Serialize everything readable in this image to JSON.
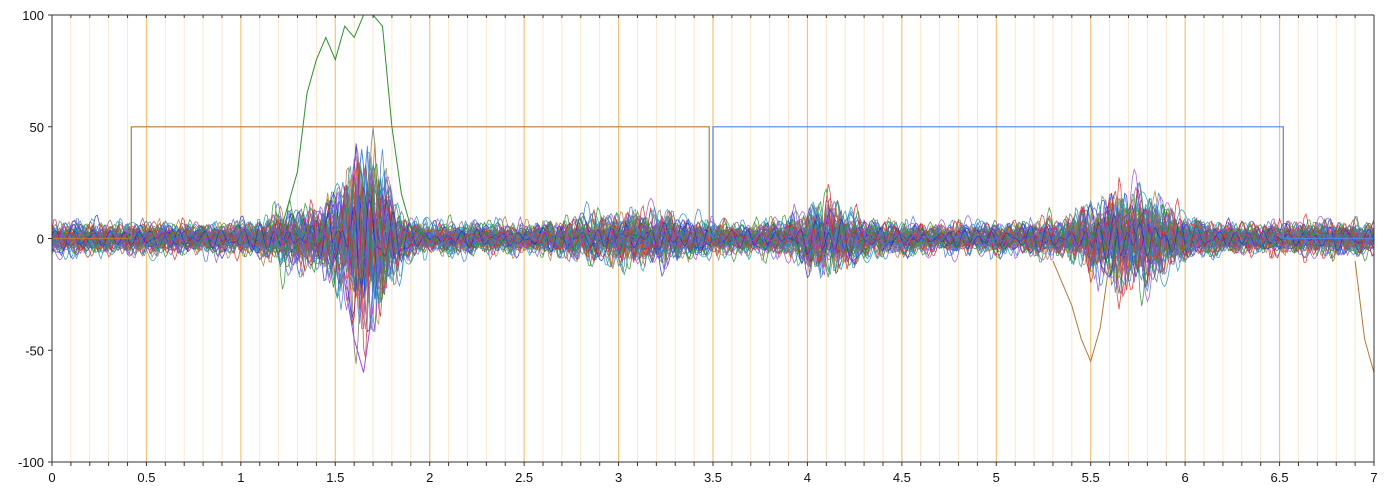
{
  "chart_data": {
    "type": "line",
    "title": "",
    "xlabel": "",
    "ylabel": "",
    "xlim": [
      0,
      7
    ],
    "ylim": [
      -100,
      100
    ],
    "x_ticks": [
      {
        "value": 0,
        "label": "0"
      },
      {
        "value": 0.5,
        "label": "0.5"
      },
      {
        "value": 1,
        "label": "1"
      },
      {
        "value": 1.5,
        "label": "1.5"
      },
      {
        "value": 2,
        "label": "2"
      },
      {
        "value": 2.5,
        "label": "2.5"
      },
      {
        "value": 3,
        "label": "3"
      },
      {
        "value": 3.5,
        "label": "3.5"
      },
      {
        "value": 4,
        "label": "4"
      },
      {
        "value": 4.5,
        "label": "4.5"
      },
      {
        "value": 5,
        "label": "5"
      },
      {
        "value": 5.5,
        "label": "5.5"
      },
      {
        "value": 6,
        "label": "6"
      },
      {
        "value": 6.5,
        "label": "6.5"
      },
      {
        "value": 7,
        "label": "7"
      }
    ],
    "y_ticks": [
      {
        "value": 100,
        "label": "100"
      },
      {
        "value": 50,
        "label": "50"
      },
      {
        "value": 0,
        "label": "0"
      },
      {
        "value": -50,
        "label": "-50"
      },
      {
        "value": -100,
        "label": "-100"
      }
    ],
    "major_grid_step": 0.5,
    "minor_grid_step": 0.1,
    "grid_color": "#f5c070",
    "grid": true,
    "legend": "none",
    "channel_count": 60,
    "channel_colors": [
      "#2b2bd6",
      "#2f8f2f",
      "#d62b2b",
      "#9b4dd6",
      "#b07a3a",
      "#3a7ad6",
      "#6a6a6a",
      "#1f9bb0"
    ],
    "marker_series": [
      {
        "color": "#b87a3a",
        "x": [
          0,
          0.42,
          0.42,
          3.48,
          3.48
        ],
        "y": [
          0,
          0,
          50,
          50,
          0
        ]
      },
      {
        "color": "#4f86e8",
        "x": [
          3.5,
          3.5,
          6.52,
          6.52,
          7
        ],
        "y": [
          0,
          50,
          50,
          0,
          0
        ]
      }
    ],
    "highlighted_series": [
      {
        "color": "#2f8f2f",
        "x": [
          1.2,
          1.3,
          1.35,
          1.4,
          1.45,
          1.5,
          1.55,
          1.6,
          1.65,
          1.7,
          1.75,
          1.8,
          1.85,
          1.9,
          2.0
        ],
        "y": [
          0,
          30,
          65,
          80,
          90,
          80,
          95,
          90,
          100,
          110,
          95,
          50,
          20,
          5,
          0
        ]
      },
      {
        "color": "#b07a3a",
        "x": [
          5.3,
          5.4,
          5.45,
          5.5,
          5.55,
          5.6
        ],
        "y": [
          -10,
          -30,
          -45,
          -55,
          -40,
          -10
        ]
      },
      {
        "color": "#b07a3a",
        "x": [
          6.9,
          6.95,
          7.0
        ],
        "y": [
          -10,
          -45,
          -60
        ]
      },
      {
        "color": "#9b4dd6",
        "x": [
          1.55,
          1.6,
          1.65,
          1.7
        ],
        "y": [
          -20,
          -45,
          -60,
          -30
        ]
      }
    ]
  }
}
